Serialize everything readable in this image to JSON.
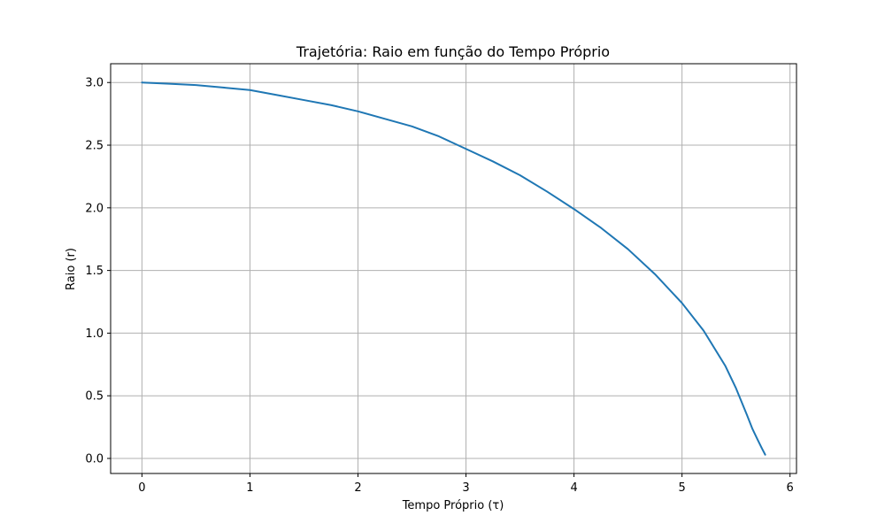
{
  "chart_data": {
    "type": "line",
    "title": "Trajetória: Raio em função do Tempo Próprio",
    "xlabel": "Tempo Próprio (τ)",
    "ylabel": "Raio (r)",
    "xlim": [
      -0.29,
      6.06
    ],
    "ylim": [
      -0.12,
      3.15
    ],
    "xticks": [
      0,
      1,
      2,
      3,
      4,
      5,
      6
    ],
    "xtick_labels": [
      "0",
      "1",
      "2",
      "3",
      "4",
      "5",
      "6"
    ],
    "yticks": [
      0.0,
      0.5,
      1.0,
      1.5,
      2.0,
      2.5,
      3.0
    ],
    "ytick_labels": [
      "0.0",
      "0.5",
      "1.0",
      "1.5",
      "2.0",
      "2.5",
      "3.0"
    ],
    "grid": true,
    "series": [
      {
        "color": "#1f77b4",
        "x": [
          0.0,
          0.25,
          0.5,
          0.75,
          1.0,
          1.25,
          1.5,
          1.75,
          2.0,
          2.25,
          2.5,
          2.75,
          3.0,
          3.25,
          3.5,
          3.75,
          4.0,
          4.25,
          4.5,
          4.75,
          5.0,
          5.2,
          5.4,
          5.5,
          5.6,
          5.65,
          5.7,
          5.74,
          5.77
        ],
        "y": [
          3.0,
          2.99,
          2.98,
          2.96,
          2.94,
          2.9,
          2.86,
          2.82,
          2.77,
          2.71,
          2.65,
          2.57,
          2.47,
          2.37,
          2.26,
          2.13,
          1.99,
          1.84,
          1.67,
          1.47,
          1.24,
          1.02,
          0.74,
          0.56,
          0.35,
          0.24,
          0.15,
          0.08,
          0.03
        ]
      }
    ]
  }
}
